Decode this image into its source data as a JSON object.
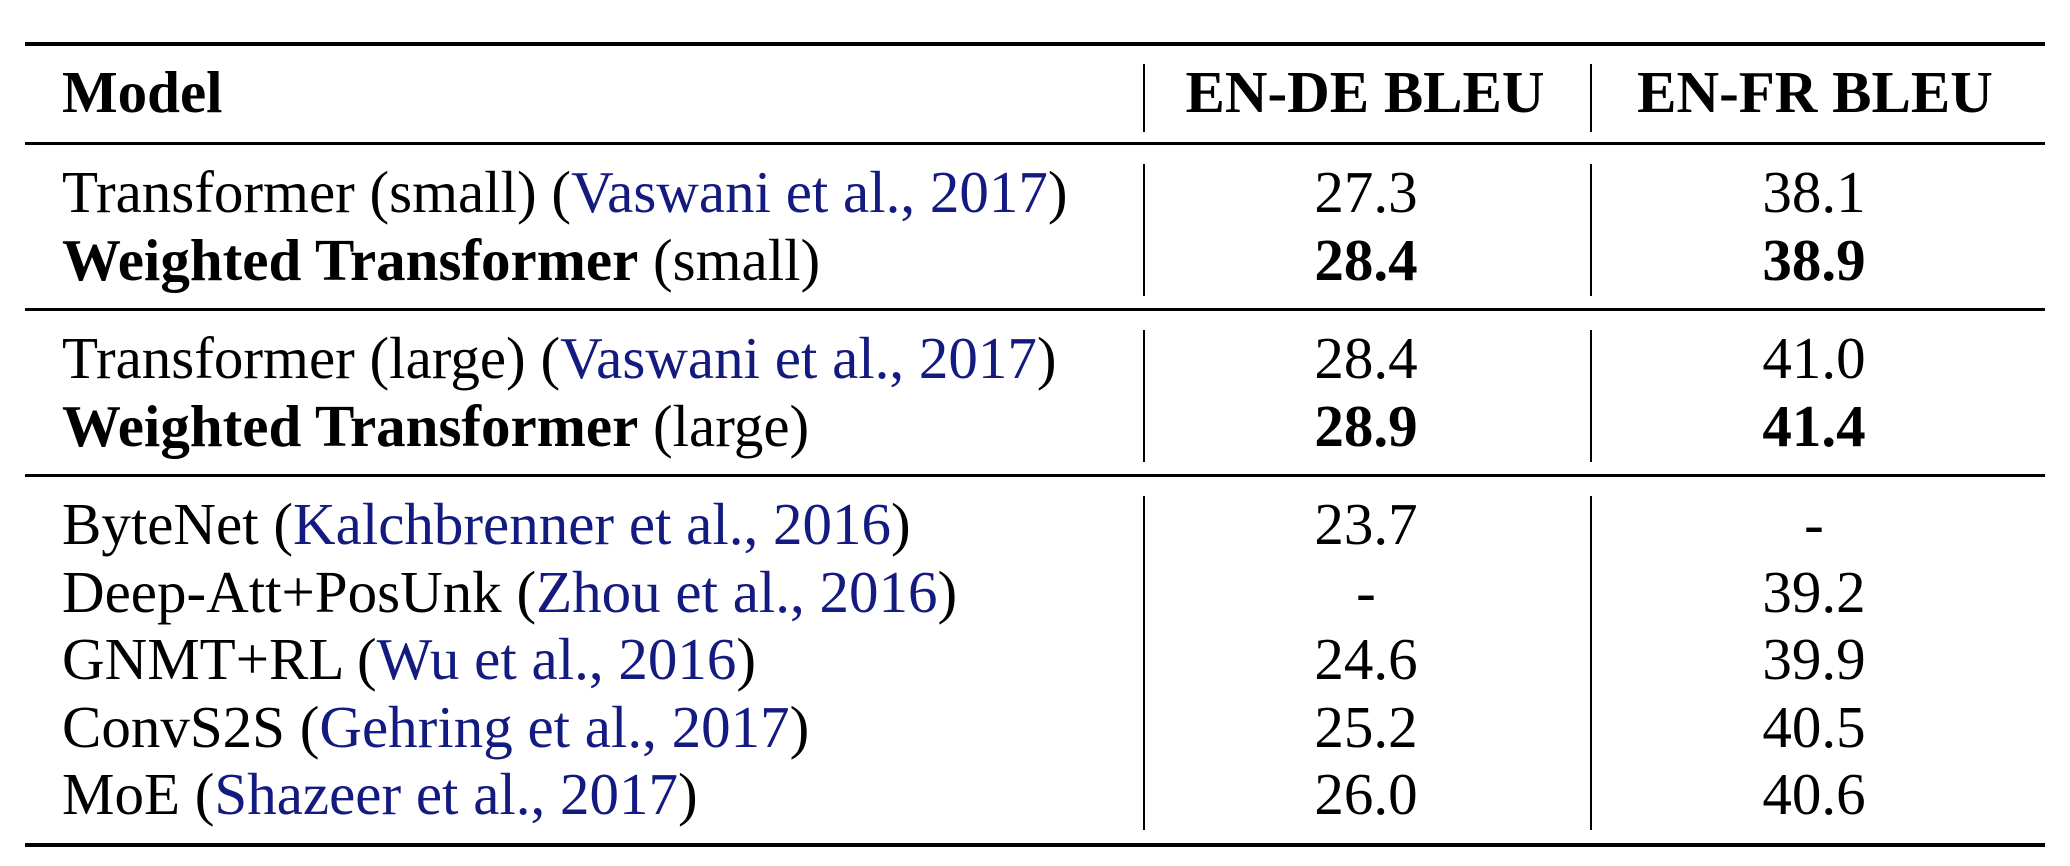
{
  "table": {
    "headers": [
      "Model",
      "EN-DE BLEU",
      "EN-FR BLEU"
    ],
    "groups": [
      {
        "rows": [
          {
            "name": "Transformer (small)",
            "name_bold": false,
            "suffix": "",
            "cite_open": " (",
            "cite": "Vaswani et al., 2017",
            "cite_close": ")",
            "en_de": "27.3",
            "en_fr": "38.1",
            "values_bold": false
          },
          {
            "name": "Weighted Transformer",
            "name_bold": true,
            "suffix": " (small)",
            "cite_open": "",
            "cite": "",
            "cite_close": "",
            "en_de": "28.4",
            "en_fr": "38.9",
            "values_bold": true
          }
        ]
      },
      {
        "rows": [
          {
            "name": "Transformer (large)",
            "name_bold": false,
            "suffix": "",
            "cite_open": " (",
            "cite": "Vaswani et al., 2017",
            "cite_close": ")",
            "en_de": "28.4",
            "en_fr": "41.0",
            "values_bold": false
          },
          {
            "name": "Weighted Transformer",
            "name_bold": true,
            "suffix": " (large)",
            "cite_open": "",
            "cite": "",
            "cite_close": "",
            "en_de": "28.9",
            "en_fr": "41.4",
            "values_bold": true
          }
        ]
      },
      {
        "rows": [
          {
            "name": "ByteNet",
            "name_bold": false,
            "suffix": "",
            "cite_open": " (",
            "cite": "Kalchbrenner et al., 2016",
            "cite_close": ")",
            "en_de": "23.7",
            "en_fr": "-",
            "values_bold": false
          },
          {
            "name": "Deep-Att+PosUnk",
            "name_bold": false,
            "suffix": "",
            "cite_open": " (",
            "cite": "Zhou et al., 2016",
            "cite_close": ")",
            "en_de": "-",
            "en_fr": "39.2",
            "values_bold": false
          },
          {
            "name": "GNMT+RL",
            "name_bold": false,
            "suffix": "",
            "cite_open": " (",
            "cite": "Wu et al., 2016",
            "cite_close": ")",
            "en_de": "24.6",
            "en_fr": "39.9",
            "values_bold": false
          },
          {
            "name": "ConvS2S",
            "name_bold": false,
            "suffix": "",
            "cite_open": " (",
            "cite": "Gehring et al., 2017",
            "cite_close": ")",
            "en_de": "25.2",
            "en_fr": "40.5",
            "values_bold": false
          },
          {
            "name": "MoE",
            "name_bold": false,
            "suffix": "",
            "cite_open": " (",
            "cite": "Shazeer et al., 2017",
            "cite_close": ")",
            "en_de": "26.0",
            "en_fr": "40.6",
            "values_bold": false
          }
        ]
      }
    ]
  },
  "colors": {
    "citation": "#131a80",
    "text": "#000000",
    "rule": "#000000"
  }
}
